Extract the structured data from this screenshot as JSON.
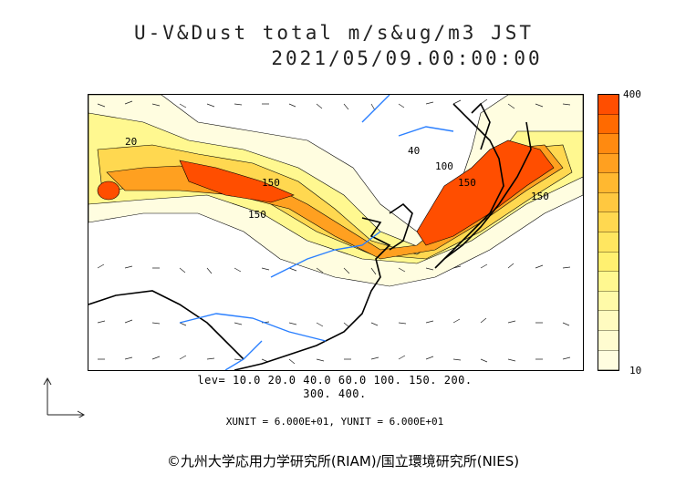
{
  "title_line1": "U-V&Dust total m/s&ug/m3 JST",
  "title_line2": "2021/05/09.00:00:00",
  "colorbar": {
    "max_label": "400",
    "min_label": "10",
    "colors": [
      "#ff4e00",
      "#ff6a00",
      "#ff8a10",
      "#ffa020",
      "#ffb830",
      "#ffc840",
      "#ffd850",
      "#ffe660",
      "#fff070",
      "#fff890",
      "#fffaa8",
      "#fffbc0",
      "#fffcd0",
      "#fffde0"
    ]
  },
  "lev_line1": "lev= 10.0 20.0 40.0 60.0 100. 150. 200.",
  "lev_line2": "300. 400.",
  "unit_line": "XUNIT = 6.000E+01, YUNIT = 6.000E+01",
  "credit": "©九州大学応用力学研究所(RIAM)/国立環境研究所(NIES)",
  "contour_labels": [
    "150",
    "150",
    "150",
    "150",
    "100",
    "20",
    "40"
  ]
}
